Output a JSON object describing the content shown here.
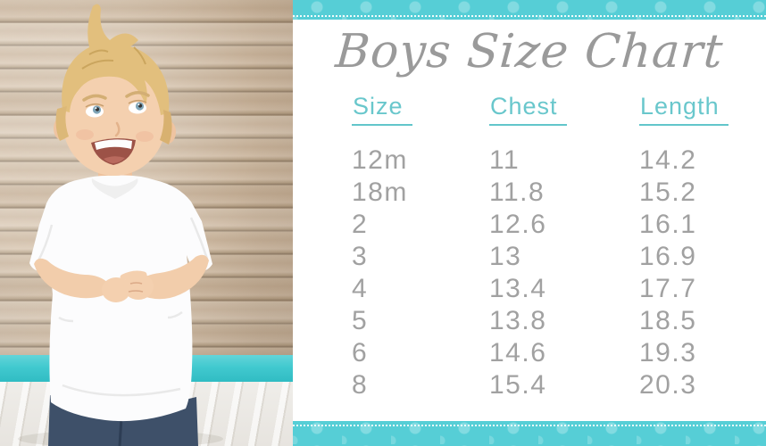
{
  "title": "Boys Size Chart",
  "photo": {
    "description": "Toddler boy with spiky blond hair wearing a plain white t-shirt and jeans, standing before a rustic wood-plank wall with a teal trim stripe and whitewashed floor"
  },
  "chart_data": {
    "type": "table",
    "title": "Boys Size Chart",
    "columns": [
      "Size",
      "Chest",
      "Length"
    ],
    "rows": [
      [
        "12m",
        "11",
        "14.2"
      ],
      [
        "18m",
        "11.8",
        "15.2"
      ],
      [
        "2",
        "12.6",
        "16.1"
      ],
      [
        "3",
        "13",
        "16.9"
      ],
      [
        "4",
        "13.4",
        "17.7"
      ],
      [
        "5",
        "13.8",
        "18.5"
      ],
      [
        "6",
        "14.6",
        "19.3"
      ],
      [
        "8",
        "15.4",
        "20.3"
      ]
    ],
    "layout_hints": {
      "header_style": "teal underlined",
      "body_style": "gray left-aligned",
      "borders": "teal polka-dot ribbons with white stitch lines at top and bottom of panel"
    }
  },
  "colors": {
    "ribbon_teal": "#56ced6",
    "ribbon_dot_teal": "#7cdbe1",
    "header_teal": "#69c7cc",
    "underline_teal": "#62c6cb",
    "value_gray": "#a1a1a1",
    "title_gray": "#9a9a9a",
    "photo_trim_teal": "#41c9cf"
  }
}
